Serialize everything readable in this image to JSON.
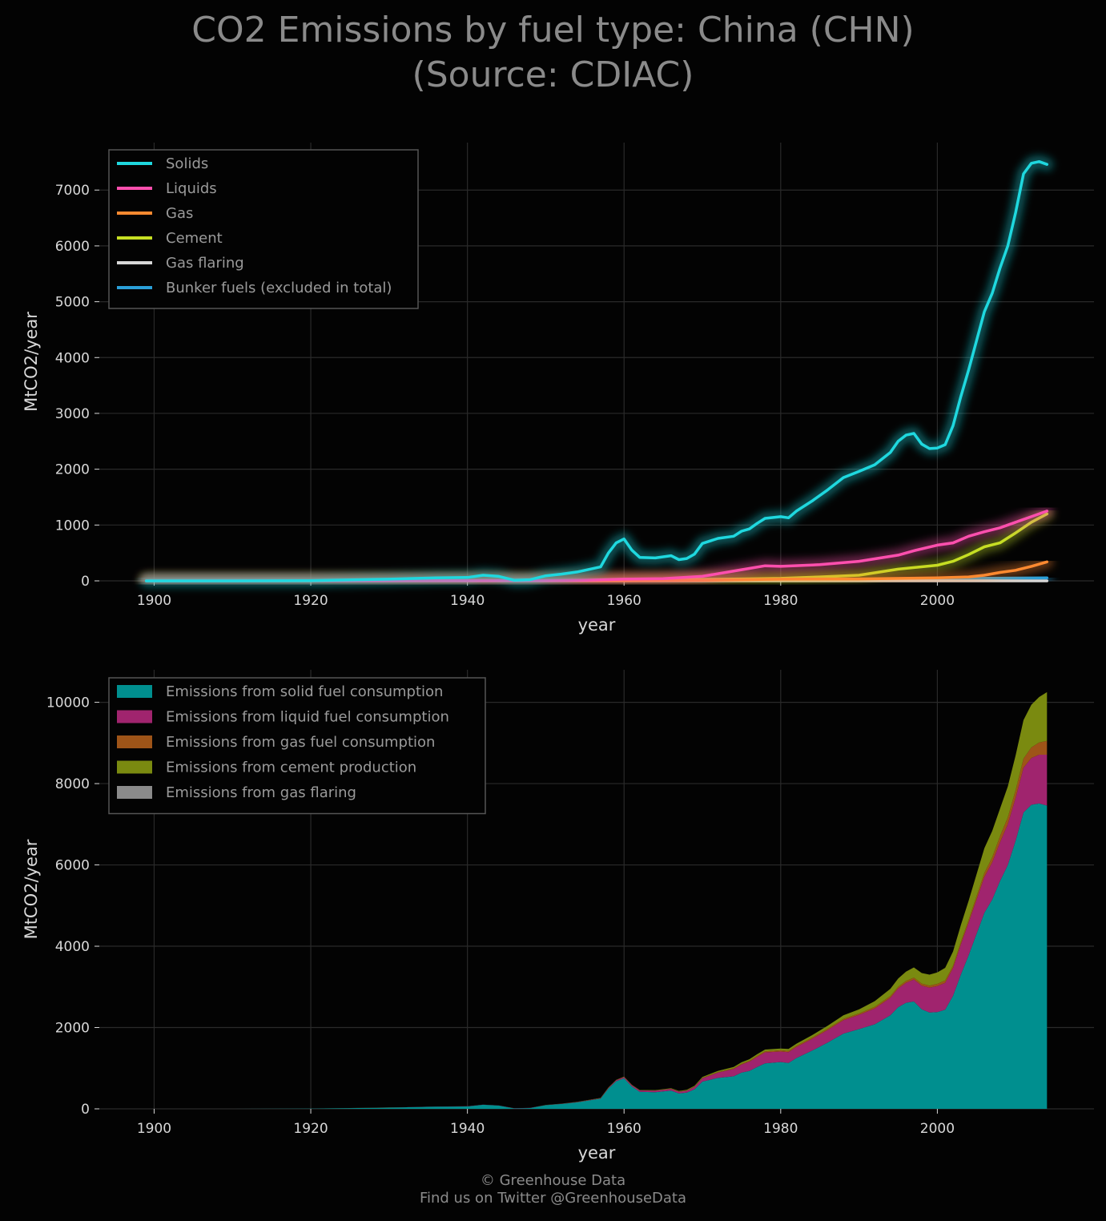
{
  "title": {
    "line1": "CO2 Emissions by fuel type: China (CHN)",
    "line2": "(Source: CDIAC)"
  },
  "footer": {
    "line1": "© Greenhouse Data",
    "line2": "Find us on Twitter @GreenhouseData"
  },
  "colors": {
    "background": "#030303",
    "grid": "#2a2a2a",
    "solids": "#1fd8df",
    "liquids": "#ff4fae",
    "gas": "#ff8a30",
    "cement": "#c6df23",
    "flaring": "#d8d8d8",
    "bunker": "#2a9fd8",
    "area_solid": "#008f8f",
    "area_liquid": "#a0246e",
    "area_gas": "#9e5418",
    "area_cement": "#7a8a10",
    "area_flaring": "#8a8a8a"
  },
  "chart_data": [
    {
      "type": "line",
      "title": "",
      "xlabel": "year",
      "ylabel": "MtCO2/year",
      "xlim": [
        1893,
        2020
      ],
      "ylim": [
        0,
        7850
      ],
      "xticks": [
        1900,
        1920,
        1940,
        1960,
        1980,
        2000
      ],
      "yticks": [
        0,
        1000,
        2000,
        3000,
        4000,
        5000,
        6000,
        7000
      ],
      "grid": true,
      "legend_position": "top-left",
      "series": [
        {
          "name": "Solids",
          "key": "solids",
          "x": [
            1899,
            1910,
            1920,
            1930,
            1936,
            1940,
            1942,
            1944,
            1946,
            1948,
            1950,
            1952,
            1954,
            1956,
            1957,
            1958,
            1959,
            1960,
            1961,
            1962,
            1964,
            1966,
            1967,
            1968,
            1969,
            1970,
            1972,
            1974,
            1975,
            1976,
            1977,
            1978,
            1980,
            1981,
            1982,
            1984,
            1986,
            1988,
            1990,
            1992,
            1994,
            1995,
            1996,
            1997,
            1998,
            1999,
            2000,
            2001,
            2002,
            2003,
            2004,
            2005,
            2006,
            2007,
            2008,
            2009,
            2010,
            2011,
            2012,
            2013,
            2014
          ],
          "values": [
            0,
            0,
            5,
            30,
            55,
            60,
            100,
            80,
            10,
            20,
            90,
            120,
            160,
            220,
            250,
            500,
            680,
            750,
            550,
            420,
            410,
            450,
            380,
            400,
            480,
            670,
            760,
            800,
            890,
            930,
            1030,
            1120,
            1150,
            1130,
            1250,
            1430,
            1630,
            1850,
            1960,
            2080,
            2300,
            2500,
            2610,
            2640,
            2450,
            2370,
            2380,
            2440,
            2780,
            3300,
            3780,
            4300,
            4820,
            5150,
            5600,
            6000,
            6600,
            7290,
            7480,
            7510,
            7460
          ]
        },
        {
          "name": "Liquids",
          "key": "liquids",
          "x": [
            1899,
            1930,
            1950,
            1955,
            1960,
            1965,
            1970,
            1975,
            1978,
            1980,
            1985,
            1990,
            1995,
            1997,
            2000,
            2002,
            2004,
            2006,
            2008,
            2010,
            2012,
            2014
          ],
          "values": [
            0,
            2,
            5,
            10,
            30,
            40,
            80,
            200,
            270,
            260,
            290,
            350,
            460,
            540,
            640,
            680,
            800,
            880,
            950,
            1050,
            1150,
            1250
          ]
        },
        {
          "name": "Gas",
          "key": "gas",
          "x": [
            1899,
            1960,
            1970,
            1980,
            1990,
            2000,
            2004,
            2006,
            2008,
            2010,
            2012,
            2014
          ],
          "values": [
            0,
            2,
            10,
            30,
            35,
            55,
            70,
            100,
            150,
            190,
            260,
            340
          ]
        },
        {
          "name": "Cement",
          "key": "cement",
          "x": [
            1899,
            1950,
            1960,
            1970,
            1975,
            1980,
            1985,
            1990,
            1995,
            2000,
            2002,
            2004,
            2006,
            2008,
            2010,
            2012,
            2014
          ],
          "values": [
            0,
            2,
            10,
            25,
            35,
            45,
            70,
            100,
            210,
            280,
            350,
            470,
            610,
            680,
            860,
            1050,
            1200
          ]
        },
        {
          "name": "Gas flaring",
          "key": "flaring",
          "x": [
            1899,
            2014
          ],
          "values": [
            0,
            0
          ]
        },
        {
          "name": "Bunker fuels (excluded in total)",
          "key": "bunker",
          "x": [
            1899,
            1950,
            1970,
            1990,
            2000,
            2010,
            2014
          ],
          "values": [
            0,
            2,
            8,
            20,
            40,
            50,
            55
          ]
        }
      ]
    },
    {
      "type": "area",
      "title": "",
      "xlabel": "year",
      "ylabel": "MtCO2/year",
      "xlim": [
        1893,
        2020
      ],
      "ylim": [
        0,
        10800
      ],
      "xticks": [
        1900,
        1920,
        1940,
        1960,
        1980,
        2000
      ],
      "yticks": [
        0,
        2000,
        4000,
        6000,
        8000,
        10000
      ],
      "grid": true,
      "legend_position": "top-left",
      "stacked": true,
      "x": [
        1899,
        1910,
        1920,
        1930,
        1936,
        1940,
        1942,
        1944,
        1946,
        1948,
        1950,
        1952,
        1954,
        1956,
        1957,
        1958,
        1959,
        1960,
        1961,
        1962,
        1964,
        1966,
        1967,
        1968,
        1969,
        1970,
        1972,
        1974,
        1975,
        1976,
        1977,
        1978,
        1980,
        1981,
        1982,
        1984,
        1986,
        1988,
        1990,
        1992,
        1994,
        1995,
        1996,
        1997,
        1998,
        1999,
        2000,
        2001,
        2002,
        2003,
        2004,
        2005,
        2006,
        2007,
        2008,
        2009,
        2010,
        2011,
        2012,
        2013,
        2014
      ],
      "series": [
        {
          "name": "Emissions from solid fuel consumption",
          "key": "area_solid",
          "values": [
            0,
            0,
            5,
            30,
            55,
            60,
            100,
            80,
            10,
            20,
            90,
            120,
            160,
            220,
            250,
            500,
            680,
            750,
            550,
            420,
            410,
            450,
            380,
            400,
            480,
            670,
            760,
            800,
            890,
            930,
            1030,
            1120,
            1150,
            1130,
            1250,
            1430,
            1630,
            1850,
            1960,
            2080,
            2300,
            2500,
            2610,
            2640,
            2450,
            2370,
            2380,
            2440,
            2780,
            3300,
            3780,
            4300,
            4820,
            5150,
            5600,
            6000,
            6600,
            7290,
            7480,
            7510,
            7460
          ]
        },
        {
          "name": "Emissions from liquid fuel consumption",
          "key": "area_liquid",
          "values": [
            0,
            0,
            1,
            2,
            2,
            3,
            3,
            3,
            4,
            4,
            5,
            6,
            8,
            10,
            12,
            18,
            25,
            30,
            32,
            34,
            38,
            40,
            42,
            45,
            60,
            80,
            130,
            180,
            200,
            230,
            250,
            270,
            260,
            265,
            270,
            290,
            310,
            330,
            350,
            390,
            430,
            460,
            490,
            540,
            580,
            610,
            640,
            660,
            680,
            740,
            800,
            840,
            880,
            910,
            950,
            1000,
            1050,
            1100,
            1150,
            1200,
            1250
          ]
        },
        {
          "name": "Emissions from gas fuel consumption",
          "key": "area_gas",
          "values": [
            0,
            0,
            0,
            0,
            0,
            0,
            0,
            0,
            0,
            0,
            0,
            0,
            0,
            1,
            1,
            1,
            2,
            2,
            2,
            2,
            3,
            4,
            5,
            6,
            8,
            10,
            14,
            18,
            20,
            22,
            24,
            26,
            30,
            30,
            31,
            32,
            33,
            34,
            35,
            38,
            42,
            44,
            46,
            48,
            50,
            52,
            55,
            58,
            60,
            65,
            70,
            85,
            100,
            125,
            150,
            170,
            190,
            225,
            260,
            300,
            340
          ]
        },
        {
          "name": "Emissions from cement production",
          "key": "area_cement",
          "values": [
            0,
            0,
            0,
            1,
            1,
            1,
            1,
            1,
            1,
            1,
            2,
            3,
            4,
            5,
            6,
            8,
            9,
            10,
            8,
            8,
            10,
            14,
            14,
            16,
            18,
            25,
            30,
            33,
            35,
            38,
            40,
            43,
            45,
            48,
            52,
            60,
            70,
            85,
            100,
            140,
            180,
            200,
            230,
            250,
            260,
            270,
            280,
            310,
            350,
            410,
            470,
            540,
            610,
            650,
            680,
            760,
            860,
            950,
            1050,
            1120,
            1200
          ]
        },
        {
          "name": "Emissions from gas flaring",
          "key": "area_flaring",
          "values": [
            0,
            0,
            0,
            0,
            0,
            0,
            0,
            0,
            0,
            0,
            0,
            0,
            0,
            0,
            0,
            0,
            0,
            0,
            0,
            0,
            0,
            0,
            0,
            0,
            0,
            0,
            0,
            0,
            0,
            0,
            0,
            0,
            0,
            0,
            0,
            0,
            0,
            0,
            0,
            0,
            0,
            0,
            0,
            0,
            0,
            0,
            0,
            0,
            0,
            0,
            0,
            0,
            0,
            0,
            0,
            0,
            0,
            0,
            0,
            0,
            0
          ]
        }
      ]
    }
  ]
}
